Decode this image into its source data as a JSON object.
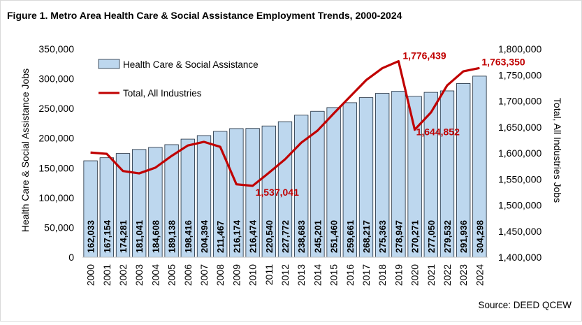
{
  "chart_data": {
    "type": "bar",
    "title": "Figure 1. Metro Area Health Care & Social Assistance Employment Trends, 2000-2024",
    "source": "Source: DEED QCEW",
    "ylabel_left": "Health Care & Social Assistance Jobs",
    "ylabel_right": "Total, All Industries Jobs",
    "ylim_left": [
      0,
      350000
    ],
    "ylim_right": [
      1400000,
      1800000
    ],
    "yticks_left": [
      "0",
      "50,000",
      "100,000",
      "150,000",
      "200,000",
      "250,000",
      "300,000",
      "350,000"
    ],
    "yticks_right": [
      "1,400,000",
      "1,450,000",
      "1,500,000",
      "1,550,000",
      "1,600,000",
      "1,650,000",
      "1,700,000",
      "1,750,000",
      "1,800,000"
    ],
    "categories": [
      "2000",
      "2001",
      "2002",
      "2003",
      "2004",
      "2005",
      "2006",
      "2007",
      "2008",
      "2009",
      "2010",
      "2011",
      "2012",
      "2013",
      "2014",
      "2015",
      "2016",
      "2017",
      "2018",
      "2019",
      "2020",
      "2021",
      "2022",
      "2023",
      "2024"
    ],
    "legend_position": "top-left",
    "grid": false,
    "bar_color": "#bdd7ee",
    "line_color": "#c00000",
    "series": [
      {
        "name": "Health Care & Social Assistance",
        "type": "bar",
        "axis": "left",
        "values": [
          162033,
          167154,
          174281,
          181041,
          184608,
          189138,
          198416,
          204394,
          211467,
          216174,
          216474,
          220540,
          227772,
          238683,
          245201,
          251460,
          259661,
          268217,
          275363,
          278947,
          270271,
          277050,
          279532,
          291936,
          304298
        ],
        "labels": [
          "162,033",
          "167,154",
          "174,281",
          "181,041",
          "184,608",
          "189,138",
          "198,416",
          "204,394",
          "211,467",
          "216,174",
          "216,474",
          "220,540",
          "227,772",
          "238,683",
          "245,201",
          "251,460",
          "259,661",
          "268,217",
          "275,363",
          "278,947",
          "270,271",
          "277,050",
          "279,532",
          "291,936",
          "304,298"
        ]
      },
      {
        "name": "Total, All Industries",
        "type": "line",
        "axis": "right",
        "values": [
          1601000,
          1598500,
          1565500,
          1561000,
          1572000,
          1594500,
          1614500,
          1621500,
          1612000,
          1540000,
          1537041,
          1562000,
          1588000,
          1620000,
          1643000,
          1676000,
          1708000,
          1740000,
          1763000,
          1776439,
          1644852,
          1678000,
          1730000,
          1757000,
          1763350
        ]
      }
    ],
    "annotations": [
      {
        "category": "2010",
        "text": "1,537,041"
      },
      {
        "category": "2019",
        "text": "1,776,439"
      },
      {
        "category": "2020",
        "text": "1,644,852"
      },
      {
        "category": "2024",
        "text": "1,763,350"
      }
    ]
  }
}
